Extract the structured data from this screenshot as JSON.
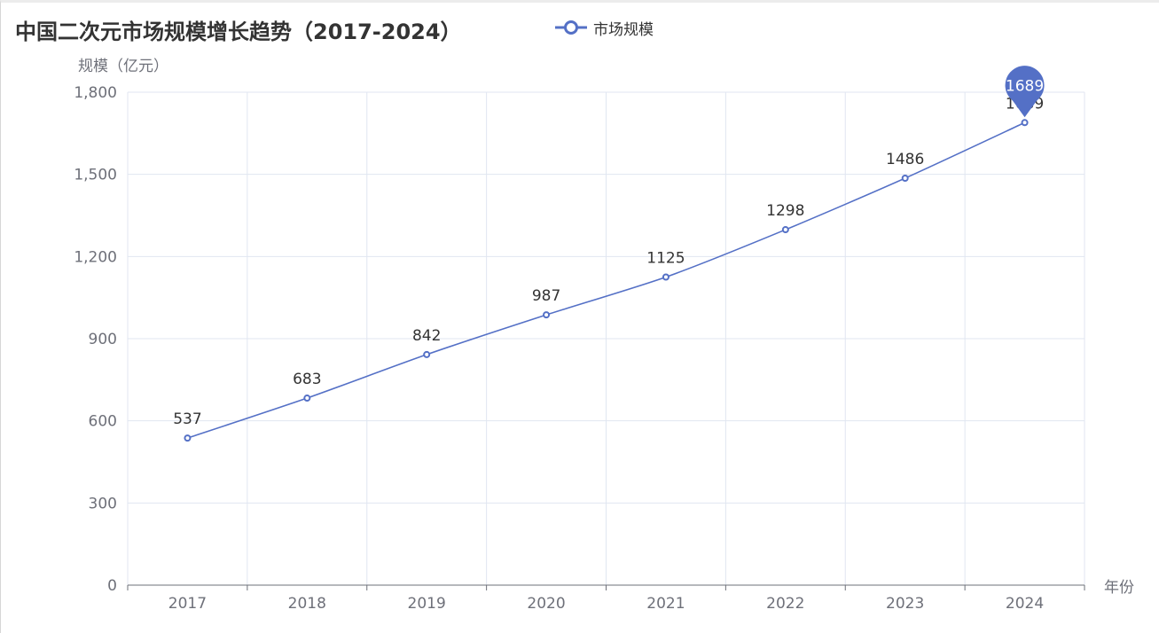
{
  "chart_data": {
    "type": "line",
    "title": "中国二次元市场规模增长趋势（2017-2024）",
    "xlabel": "年份",
    "ylabel": "规模（亿元）",
    "categories": [
      "2017",
      "2018",
      "2019",
      "2020",
      "2021",
      "2022",
      "2023",
      "2024"
    ],
    "series": [
      {
        "name": "市场规模",
        "values": [
          537,
          683,
          842,
          987,
          1125,
          1298,
          1486,
          1689
        ],
        "color": "#5470c6"
      }
    ],
    "ylim": [
      0,
      1800
    ],
    "yticks": [
      0,
      300,
      600,
      900,
      1200,
      1500,
      1800
    ],
    "ytick_labels": [
      "0",
      "300",
      "600",
      "900",
      "1,200",
      "1,500",
      "1,800"
    ],
    "grid": true,
    "legend_position": "top-center",
    "max_marker": {
      "label": "1689",
      "category": "2024"
    }
  }
}
